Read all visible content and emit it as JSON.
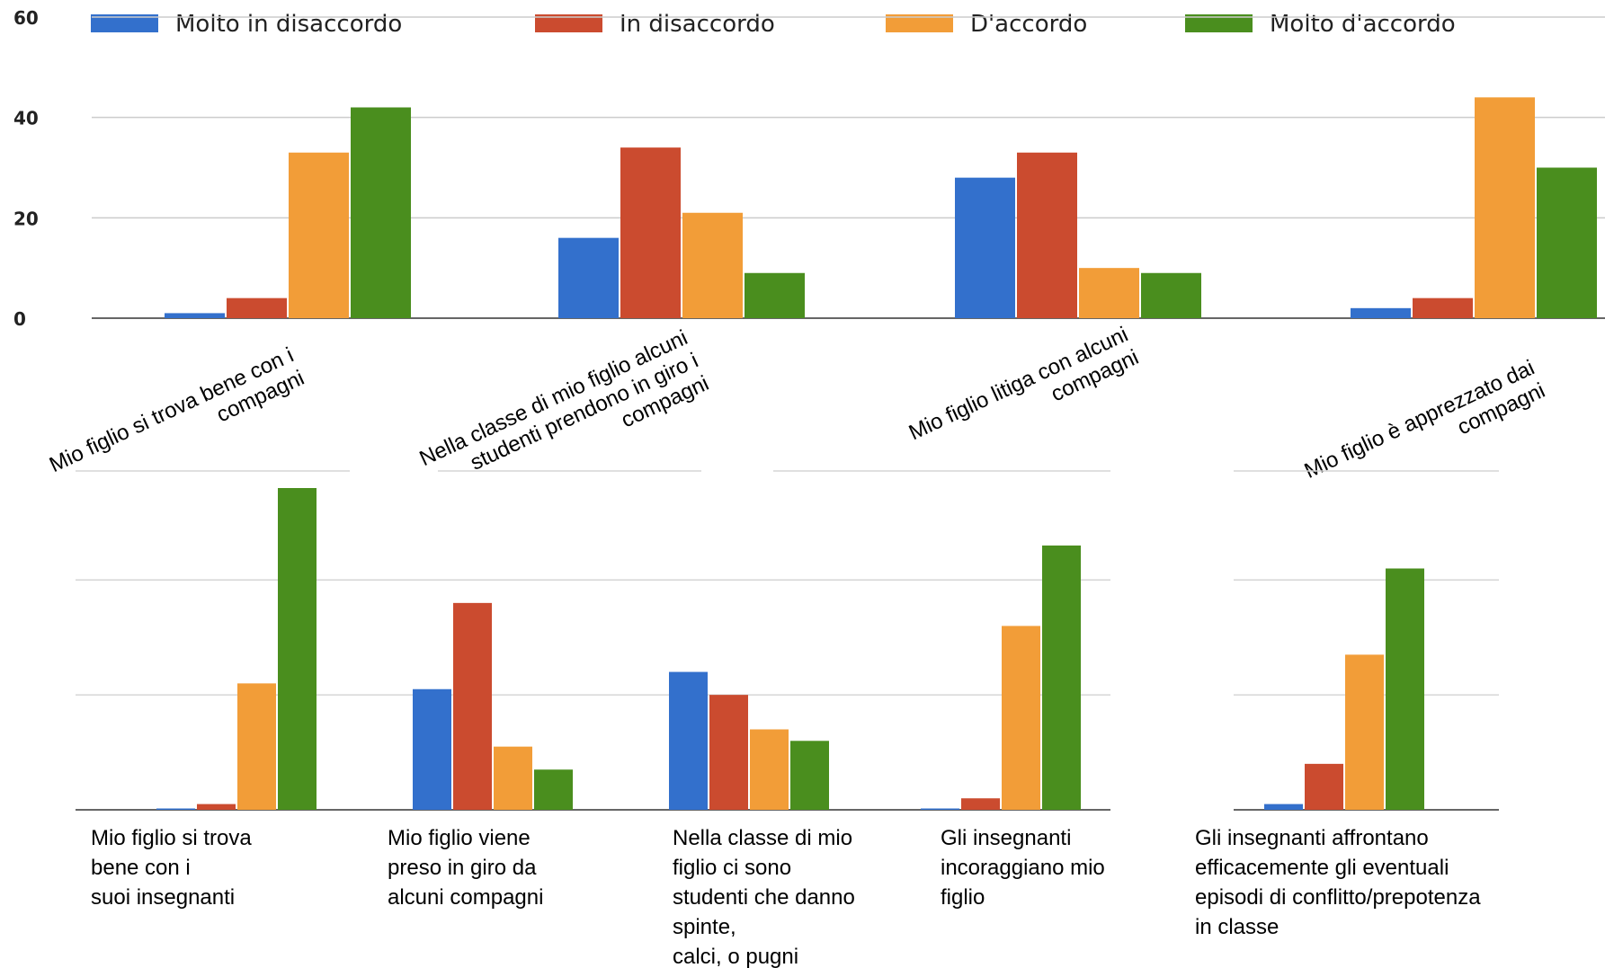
{
  "colors": [
    "#3370cc",
    "#cb4b2f",
    "#f29d38",
    "#4a8e1e"
  ],
  "legend": [
    "Molto in disaccordo",
    "In disaccordo",
    "D'accordo",
    "Molto d'accordo"
  ],
  "chart_data": [
    {
      "type": "bar",
      "title": "",
      "xlabel": "",
      "ylabel": "",
      "ylim": [
        0,
        60
      ],
      "yticks": [
        "0",
        "20",
        "40",
        "60"
      ],
      "grid": true,
      "legend_position": "top",
      "categories": [
        [
          "Mio figlio si trova bene con i",
          "compagni"
        ],
        [
          "Nella classe di mio figlio alcuni",
          "studenti prendono in giro i",
          "compagni"
        ],
        [
          "Mio figlio litiga con alcuni",
          "compagni"
        ],
        [
          "Mio figlio è apprezzato dai",
          "compagni"
        ]
      ],
      "series": [
        {
          "name": "Molto in disaccordo",
          "values": [
            1,
            16,
            28,
            2
          ]
        },
        {
          "name": "In disaccordo",
          "values": [
            4,
            34,
            33,
            4
          ]
        },
        {
          "name": "D'accordo",
          "values": [
            33,
            21,
            10,
            44
          ]
        },
        {
          "name": "Molto d'accordo",
          "values": [
            42,
            9,
            9,
            30
          ]
        }
      ]
    },
    {
      "type": "bar",
      "title": "",
      "xlabel": "",
      "ylabel": "",
      "ylim": [
        0,
        56
      ],
      "grid": true,
      "categories": [
        [
          "Mio figlio si trova",
          "bene con i",
          "suoi insegnanti"
        ],
        [
          "Mio figlio viene",
          "preso in giro da",
          "alcuni compagni"
        ],
        [
          "Nella classe di mio",
          "figlio ci sono",
          "studenti che danno",
          "spinte,",
          "calci, o pugni"
        ],
        [
          "Gli insegnanti",
          "incoraggiano mio",
          "figlio"
        ],
        [
          "Gli insegnanti affrontano",
          "efficacemente gli eventuali",
          "episodi di conflitto/prepotenza",
          "in classe"
        ]
      ],
      "series": [
        {
          "name": "Molto in disaccordo",
          "values": [
            0,
            21,
            24,
            0,
            1
          ]
        },
        {
          "name": "In disaccordo",
          "values": [
            1,
            36,
            20,
            2,
            8
          ]
        },
        {
          "name": "D'accordo",
          "values": [
            22,
            11,
            14,
            32,
            27
          ]
        },
        {
          "name": "Molto d'accordo",
          "values": [
            56,
            7,
            12,
            46,
            42
          ]
        }
      ]
    }
  ]
}
